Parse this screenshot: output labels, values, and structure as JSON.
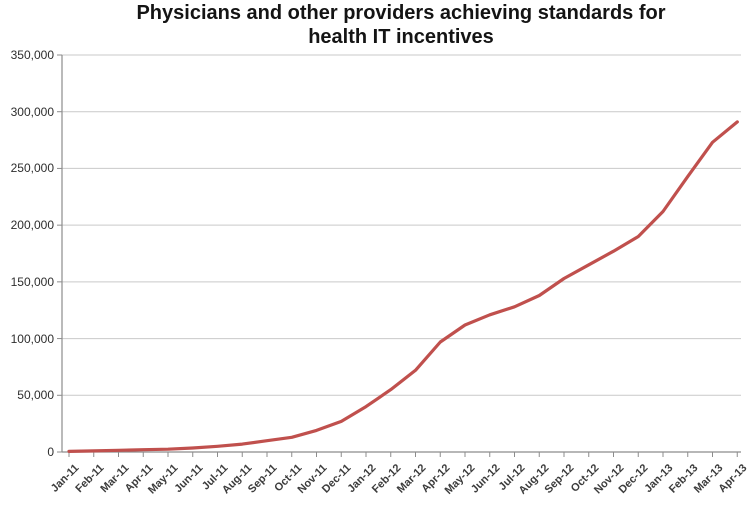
{
  "title": "Physicians and other providers achieving standards for health IT incentives",
  "chart_data": {
    "type": "line",
    "title": "Physicians and other providers achieving standards for health IT incentives",
    "categories": [
      "Jan-11",
      "Feb-11",
      "Mar-11",
      "Apr-11",
      "May-11",
      "Jun-11",
      "Jul-11",
      "Aug-11",
      "Sep-11",
      "Oct-11",
      "Nov-11",
      "Dec-11",
      "Jan-12",
      "Feb-12",
      "Mar-12",
      "Apr-12",
      "May-12",
      "Jun-12",
      "Jul-12",
      "Aug-12",
      "Sep-12",
      "Oct-12",
      "Nov-12",
      "Dec-12",
      "Jan-13",
      "Feb-13",
      "Mar-13",
      "Apr-13"
    ],
    "values": [
      500,
      1000,
      1500,
      2000,
      2500,
      3500,
      5000,
      7000,
      10000,
      13000,
      19000,
      27000,
      40000,
      55000,
      72000,
      97000,
      112000,
      121000,
      128000,
      138000,
      153000,
      165000,
      177000,
      190000,
      212000,
      243000,
      273000,
      291000
    ],
    "xlabel": "",
    "ylabel": "",
    "ylim": [
      0,
      350000
    ],
    "ytick_step": 50000,
    "ytick_labels": [
      "0",
      "50,000",
      "100,000",
      "150,000",
      "200,000",
      "250,000",
      "300,000",
      "350,000"
    ],
    "grid": true,
    "legend": "none",
    "line_color": "#C0504D",
    "gridline_color": "#c9c9c9",
    "axis_color": "#8c8c8c",
    "label_color": "#3c3c3c",
    "background_color": "#ffffff"
  }
}
